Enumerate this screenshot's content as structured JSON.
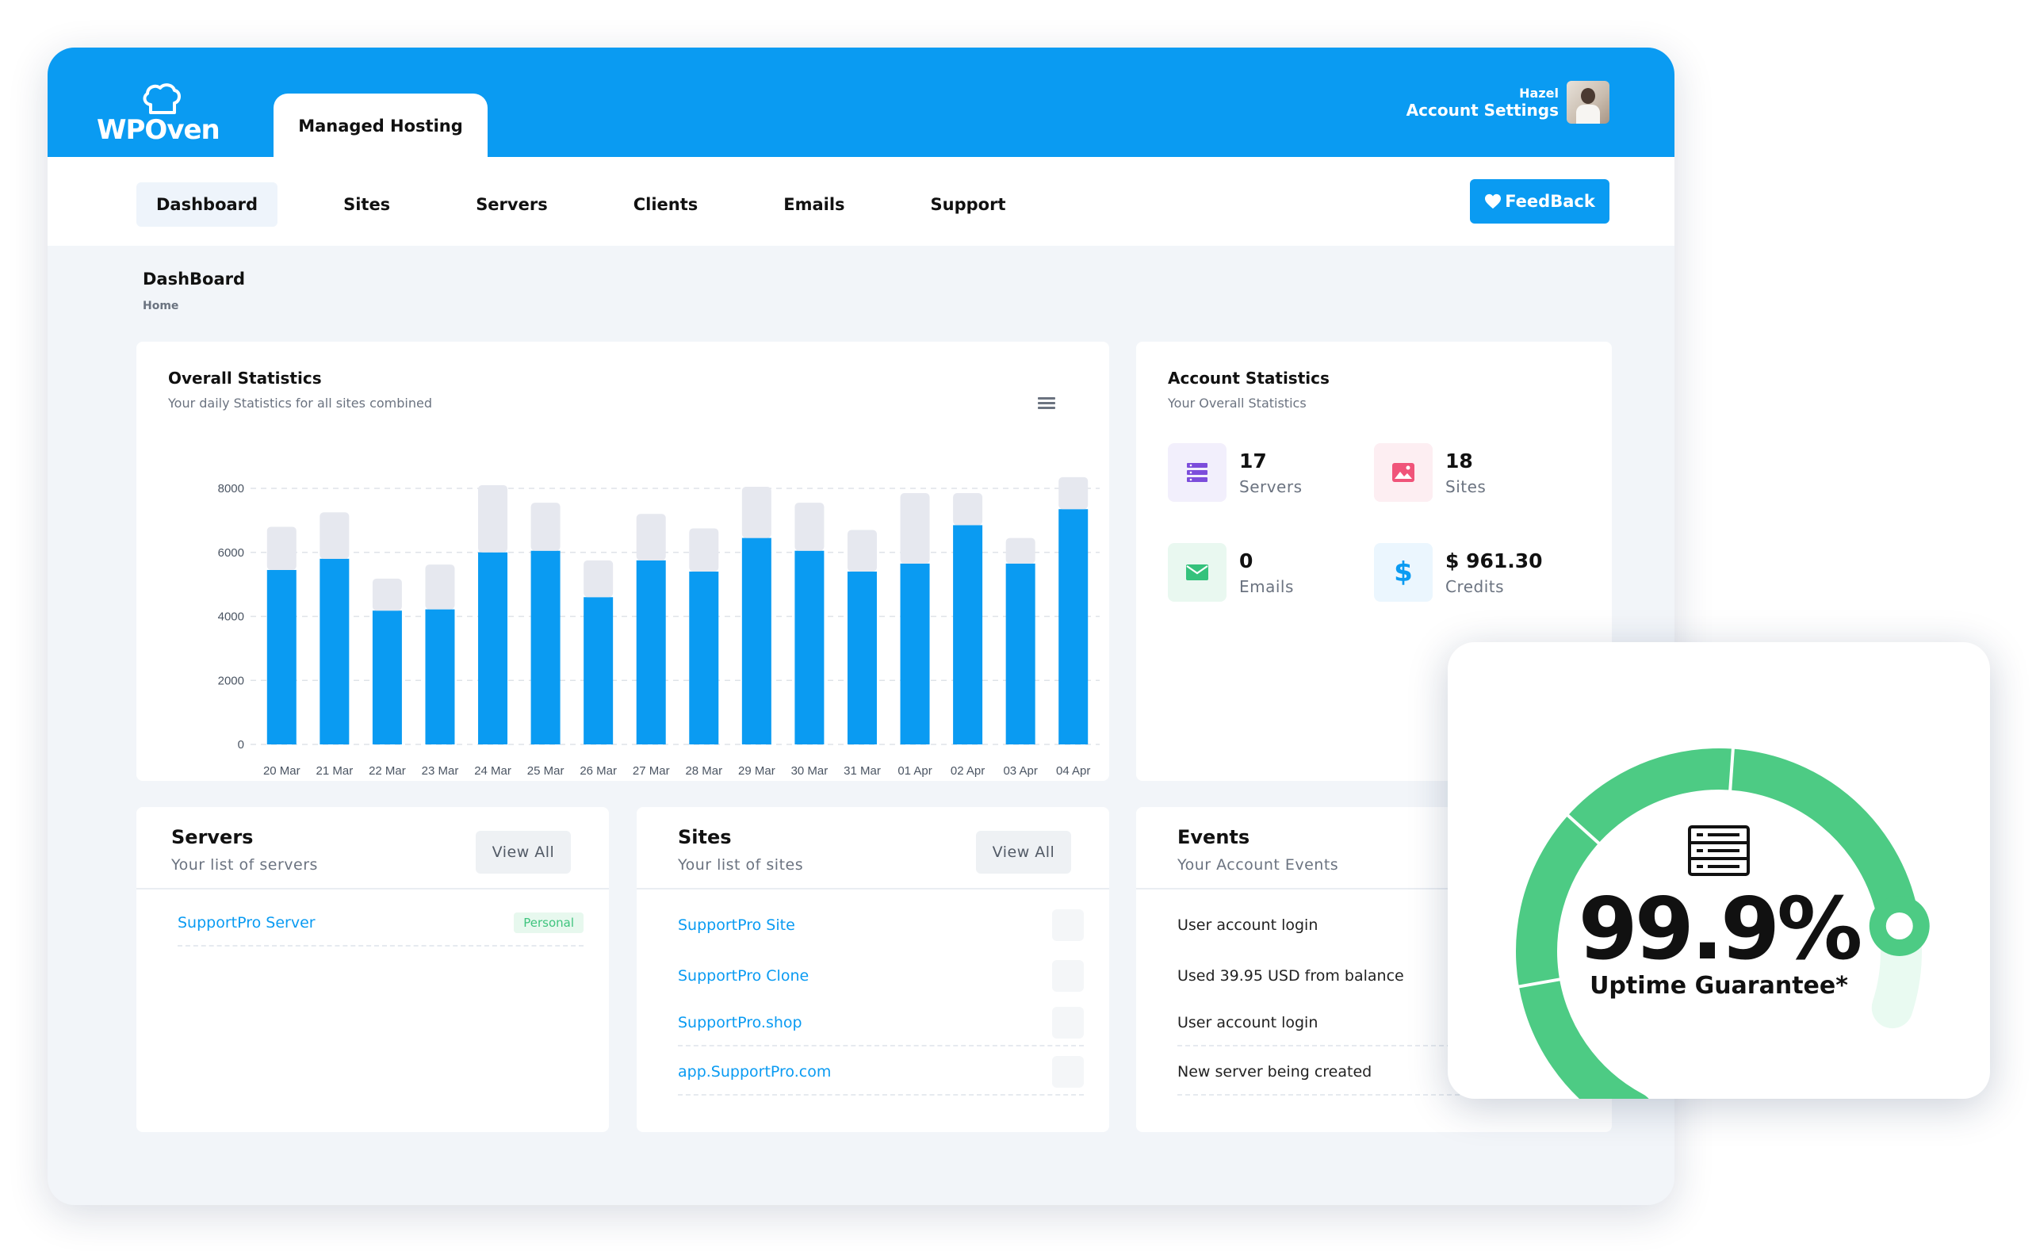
{
  "brand": {
    "logo_text": "WPOven"
  },
  "header": {
    "active_tab": "Managed Hosting",
    "user_name": "Hazel",
    "account_link": "Account Settings"
  },
  "nav": {
    "items": [
      "Dashboard",
      "Sites",
      "Servers",
      "Clients",
      "Emails",
      "Support"
    ],
    "active": "Dashboard",
    "feedback_label": "FeedBack"
  },
  "breadcrumb": {
    "title": "DashBoard",
    "home": "Home"
  },
  "overall_stats": {
    "title": "Overall Statistics",
    "subtitle": "Your daily Statistics for all sites combined"
  },
  "chart_data": {
    "type": "bar",
    "stacked": true,
    "categories": [
      "20 Mar",
      "21 Mar",
      "22 Mar",
      "23 Mar",
      "24 Mar",
      "25 Mar",
      "26 Mar",
      "27 Mar",
      "28 Mar",
      "29 Mar",
      "30 Mar",
      "31 Mar",
      "01 Apr",
      "02 Apr",
      "03 Apr",
      "04 Apr"
    ],
    "series": [
      {
        "values": [
          5450,
          5800,
          4180,
          4220,
          6000,
          6050,
          4600,
          5750,
          5400,
          6450,
          6050,
          5400,
          5650,
          6850,
          5650,
          7350
        ],
        "color": "#0a9bf2"
      },
      {
        "values": [
          1350,
          1450,
          1000,
          1400,
          2100,
          1500,
          1150,
          1450,
          1350,
          1600,
          1500,
          1300,
          2200,
          1000,
          800,
          1000
        ],
        "color": "#e6e8ef"
      }
    ],
    "ylim": [
      0,
      8000
    ],
    "yticks": [
      0,
      2000,
      4000,
      6000,
      8000
    ],
    "grid": true
  },
  "account_stats": {
    "title": "Account Statistics",
    "subtitle": "Your Overall Statistics",
    "items": [
      {
        "value": "17",
        "label": "Servers",
        "icon": "server-icon",
        "color": "#7c4ddb",
        "bg": "#f2effc"
      },
      {
        "value": "18",
        "label": "Sites",
        "icon": "image-icon",
        "color": "#f0547a",
        "bg": "#fdeef2"
      },
      {
        "value": "0",
        "label": "Emails",
        "icon": "mail-icon",
        "color": "#35c27c",
        "bg": "#e9f8f0"
      },
      {
        "value": "$ 961.30",
        "label": "Credits",
        "icon": "dollar-icon",
        "color": "#0a9bf2",
        "bg": "#ebf6fe"
      }
    ]
  },
  "servers": {
    "title": "Servers",
    "subtitle": "Your list of servers",
    "view_all": "View All",
    "items": [
      {
        "name": "SupportPro Server",
        "badge": "Personal"
      }
    ]
  },
  "sites": {
    "title": "Sites",
    "subtitle": "Your list of sites",
    "view_all": "View All",
    "items": [
      "SupportPro Site",
      "SupportPro Clone",
      "SupportPro.shop",
      "app.SupportPro.com"
    ]
  },
  "events": {
    "title": "Events",
    "subtitle": "Your Account Events",
    "items": [
      "User account login",
      "Used 39.95 USD from balance",
      "User account login",
      "New server being created"
    ]
  },
  "uptime": {
    "value": "99.9%",
    "label": "Uptime Guarantee*",
    "gauge_fraction": 0.9,
    "color": "#4dcb84",
    "track_color": "#e9faf1"
  }
}
